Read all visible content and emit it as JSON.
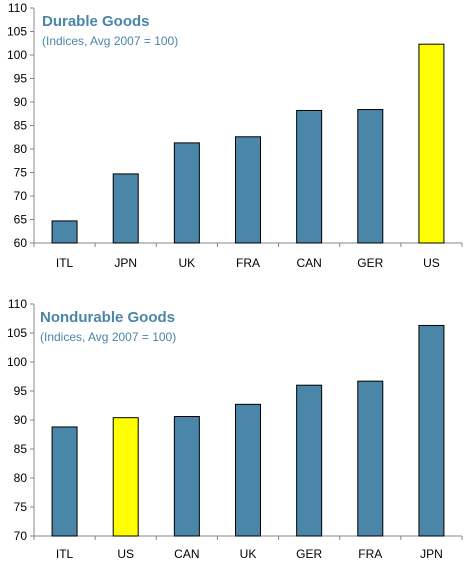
{
  "colors": {
    "bar": "#4a86a8",
    "highlight": "#ffff00",
    "title": "#4a86a8",
    "axis": "#888888",
    "bar_stroke": "#000000"
  },
  "chart_data": [
    {
      "type": "bar",
      "title": "Durable Goods",
      "subtitle": "(Indices, Avg 2007 = 100)",
      "categories": [
        "ITL",
        "JPN",
        "UK",
        "FRA",
        "CAN",
        "GER",
        "US"
      ],
      "values": [
        64.7,
        74.7,
        81.3,
        82.6,
        88.2,
        88.4,
        102.3
      ],
      "highlight": "US",
      "ylim": [
        60,
        110
      ],
      "yticks": [
        60,
        65,
        70,
        75,
        80,
        85,
        90,
        95,
        100,
        105,
        110
      ],
      "xlabel": "",
      "ylabel": "",
      "grid": false
    },
    {
      "type": "bar",
      "title": "Nondurable Goods",
      "subtitle": "(Indices, Avg 2007 = 100)",
      "categories": [
        "ITL",
        "US",
        "CAN",
        "UK",
        "GER",
        "FRA",
        "JPN"
      ],
      "values": [
        88.8,
        90.4,
        90.6,
        92.7,
        96.0,
        96.7,
        106.3
      ],
      "highlight": "US",
      "ylim": [
        70,
        110
      ],
      "yticks": [
        70,
        75,
        80,
        85,
        90,
        95,
        100,
        105,
        110
      ],
      "xlabel": "",
      "ylabel": "",
      "grid": false
    }
  ]
}
